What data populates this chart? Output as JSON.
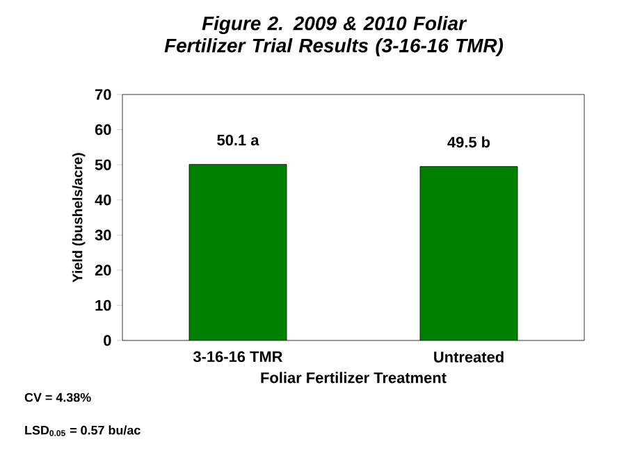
{
  "chart_data": {
    "type": "bar",
    "title": "Figure 2. 2009 & 2010 Foliar Fertilizer Trial Results (3-16-16 TMR)",
    "categories": [
      "3-16-16 TMR",
      "Untreated"
    ],
    "values": [
      50.1,
      49.5
    ],
    "value_labels": [
      "50.1 a",
      "49.5 b"
    ],
    "color": "#008000",
    "xlabel": "Foliar Fertilizer Treatment",
    "ylabel": "Yield (bushels/acre)",
    "ylim": [
      0,
      70
    ],
    "yticks": [
      0,
      10,
      20,
      30,
      40,
      50,
      60,
      70
    ],
    "grid": false,
    "annotations": [
      "CV = 4.38%",
      "LSD$_{0.05}$ = 0.57 bu/ac"
    ]
  }
}
